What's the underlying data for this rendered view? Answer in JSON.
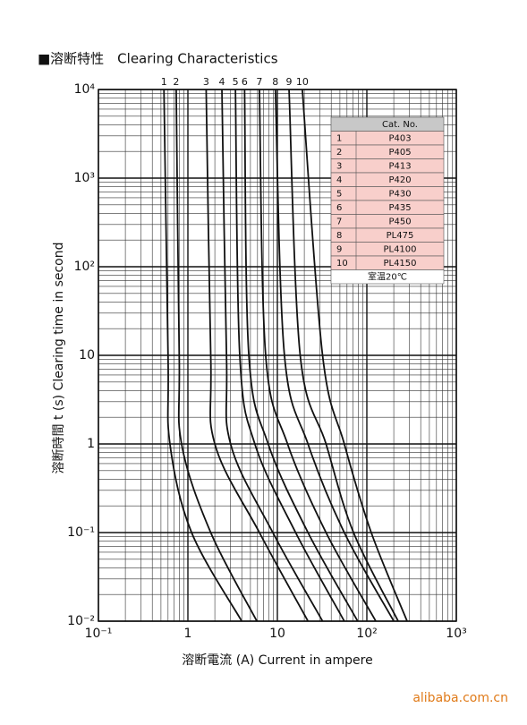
{
  "chart_data": {
    "type": "line",
    "title": "■溶断特性　Clearing Characteristics",
    "x_label": "溶断電流 (A)  Current in ampere",
    "y_label": "溶断時間 t (s)  Clearing time in second",
    "log_x": true,
    "log_y": true,
    "grid": true,
    "xlim": [
      0.1,
      1000
    ],
    "xticks": [
      {
        "value": 0.1,
        "label": "10⁻¹"
      },
      1,
      10,
      {
        "value": 100,
        "label": "10²"
      },
      {
        "value": 1000,
        "label": "10³"
      }
    ],
    "ylim": [
      0.01,
      10000
    ],
    "yticks": [
      {
        "value": 0.01,
        "label": "10⁻²"
      },
      {
        "value": 0.1,
        "label": "10⁻¹"
      },
      1,
      10,
      {
        "value": 100,
        "label": "10²"
      },
      {
        "value": 1000,
        "label": "10³"
      },
      {
        "value": 10000,
        "label": "10⁴"
      }
    ],
    "series": [
      {
        "name": "1",
        "color": "#111111",
        "x": [
          0.54,
          0.6,
          0.63,
          1.1,
          4.0
        ],
        "values": [
          10000,
          10,
          1,
          0.1,
          0.01
        ]
      },
      {
        "name": "2",
        "color": "#111111",
        "x": [
          0.74,
          0.8,
          0.85,
          1.8,
          5.9
        ],
        "values": [
          10000,
          10,
          1,
          0.1,
          0.01
        ]
      },
      {
        "name": "3",
        "color": "#111111",
        "x": [
          1.6,
          1.8,
          2.0,
          6.3,
          22
        ],
        "values": [
          10000,
          10,
          1,
          0.1,
          0.01
        ]
      },
      {
        "name": "4",
        "color": "#111111",
        "x": [
          2.4,
          2.7,
          3.0,
          8.9,
          32
        ],
        "values": [
          10000,
          10,
          1,
          0.1,
          0.01
        ]
      },
      {
        "name": "5",
        "color": "#111111",
        "x": [
          3.4,
          3.8,
          5.6,
          16,
          56
        ],
        "values": [
          10000,
          10,
          1,
          0.1,
          0.01
        ]
      },
      {
        "name": "6",
        "color": "#111111",
        "x": [
          4.3,
          4.8,
          7.9,
          22,
          79
        ],
        "values": [
          10000,
          10,
          1,
          0.1,
          0.01
        ]
      },
      {
        "name": "7",
        "color": "#111111",
        "x": [
          6.3,
          7.4,
          13,
          35,
          126
        ],
        "values": [
          10000,
          10,
          1,
          0.1,
          0.01
        ]
      },
      {
        "name": "8",
        "color": "#111111",
        "x": [
          9.5,
          12,
          22,
          56,
          200
        ],
        "values": [
          10000,
          10,
          1,
          0.1,
          0.01
        ]
      },
      {
        "name": "9",
        "color": "#111111",
        "x": [
          13.5,
          18,
          35,
          71,
          224
        ],
        "values": [
          10000,
          10,
          1,
          0.1,
          0.01
        ]
      },
      {
        "name": "10",
        "color": "#111111",
        "x": [
          19,
          32,
          56,
          112,
          282
        ],
        "values": [
          10000,
          10,
          1,
          0.1,
          0.01
        ]
      }
    ],
    "table": {
      "header": [
        "",
        "Cat. No."
      ],
      "rows": [
        [
          "1",
          "P403"
        ],
        [
          "2",
          "P405"
        ],
        [
          "3",
          "P413"
        ],
        [
          "4",
          "P420"
        ],
        [
          "5",
          "P430"
        ],
        [
          "6",
          "P435"
        ],
        [
          "7",
          "P450"
        ],
        [
          "8",
          "PL475"
        ],
        [
          "9",
          "PL4100"
        ],
        [
          "10",
          "PL4150"
        ]
      ],
      "footer": "室温20℃"
    }
  },
  "watermark": "alibaba.com.cn"
}
